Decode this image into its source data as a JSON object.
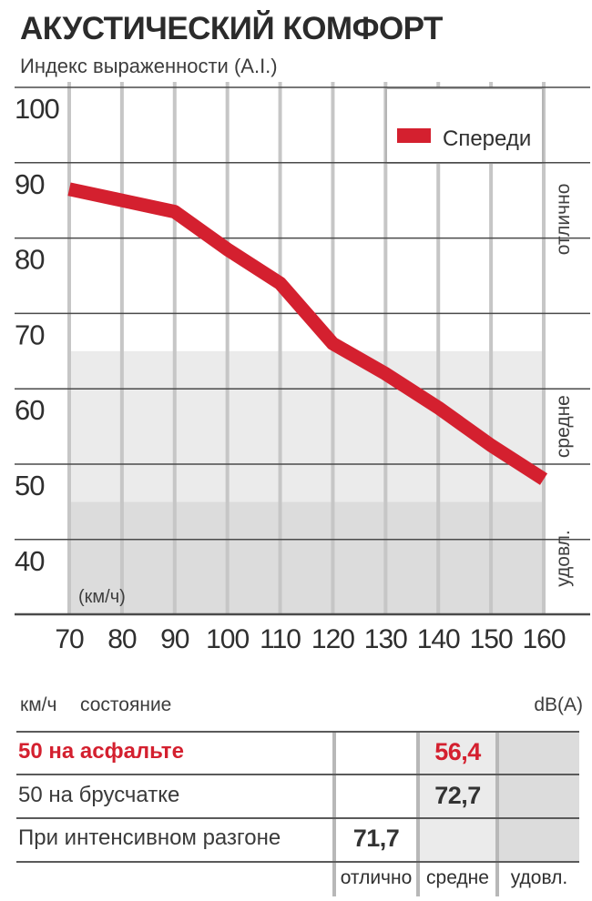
{
  "title": "АКУСТИЧЕСКИЙ КОМФОРТ",
  "subtitle": "Индекс выраженности (A.I.)",
  "colors": {
    "accent_red": "#d4202f",
    "zone_mid_gray": "#ebebeb",
    "zone_low_gray": "#dcdcdc",
    "grid_vertical": "#c6c6c6",
    "grid_horizontal": "#4a4a4a",
    "text_dark": "#2f2f2f"
  },
  "chart_data": {
    "type": "line",
    "title": "АКУСТИЧЕСКИЙ КОМФОРТ",
    "ylabel": "Индекс выраженности (A.I.)",
    "xlabel": "(км/ч)",
    "x": [
      70,
      80,
      90,
      100,
      110,
      120,
      130,
      140,
      150,
      160
    ],
    "series": [
      {
        "name": "Спереди",
        "color": "#d4202f",
        "values": [
          86.5,
          85,
          83.5,
          78.5,
          74,
          66,
          62,
          57.5,
          52.5,
          48
        ]
      }
    ],
    "ylim": [
      30,
      100
    ],
    "yticks": [
      40,
      50,
      60,
      70,
      80,
      90,
      100
    ],
    "grid": true,
    "legend_position": "top-right",
    "x_unit_label": "(км/ч)",
    "zones": [
      {
        "label": "отлично",
        "from": 65,
        "to": 100,
        "color": "#ffffff"
      },
      {
        "label": "средне",
        "from": 45,
        "to": 65,
        "color": "#ebebeb"
      },
      {
        "label": "удовл.",
        "from": 30,
        "to": 45,
        "color": "#dcdcdc"
      }
    ]
  },
  "legend": {
    "label": "Спереди"
  },
  "table": {
    "header": {
      "col1": "км/ч",
      "col2": "состояние",
      "right": "dB(A)"
    },
    "rows": [
      {
        "label": "50 на асфальте",
        "value": "56,4",
        "value_column": "средне",
        "highlight": true
      },
      {
        "label": "50 на брусчатке",
        "value": "72,7",
        "value_column": "средне",
        "highlight": false
      },
      {
        "label": "При интенсивном разгоне",
        "value": "71,7",
        "value_column": "отлично",
        "highlight": false
      }
    ],
    "footer_labels": [
      "отлично",
      "средне",
      "удовл."
    ]
  }
}
